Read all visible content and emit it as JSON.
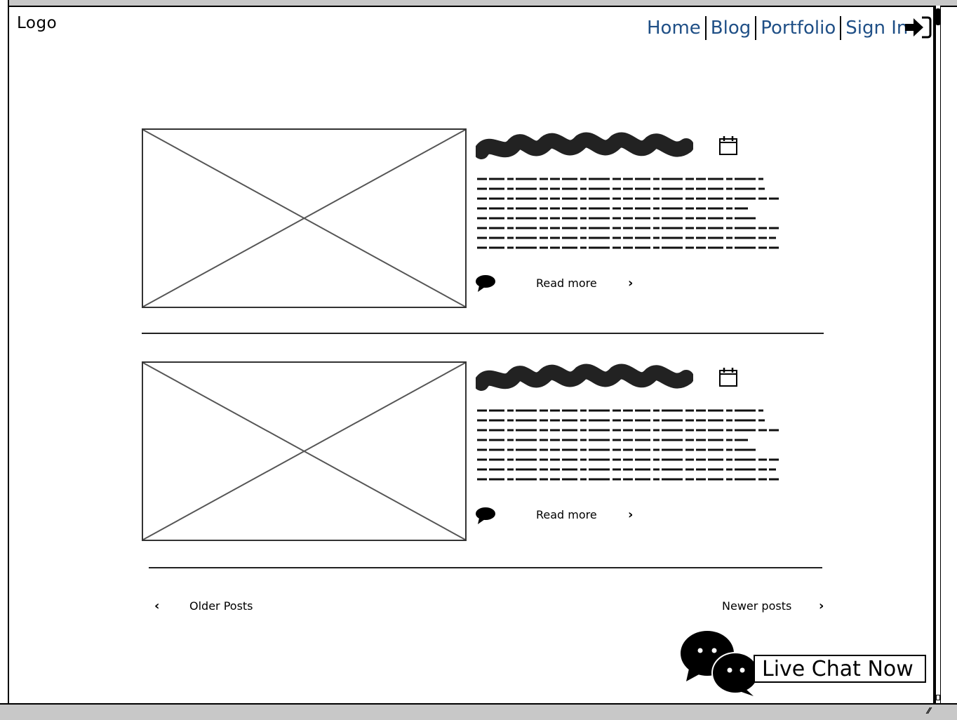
{
  "header": {
    "logo": "Logo",
    "nav": {
      "home": "Home",
      "blog": "Blog",
      "portfolio": "Portfolio",
      "sign_in": "Sign In"
    },
    "link_color": "#1f4f86"
  },
  "posts": [
    {
      "read_more": "Read more"
    },
    {
      "read_more": "Read more"
    }
  ],
  "pagination": {
    "older": "Older Posts",
    "newer": "Newer posts"
  },
  "chat": {
    "label": "Live Chat Now"
  }
}
